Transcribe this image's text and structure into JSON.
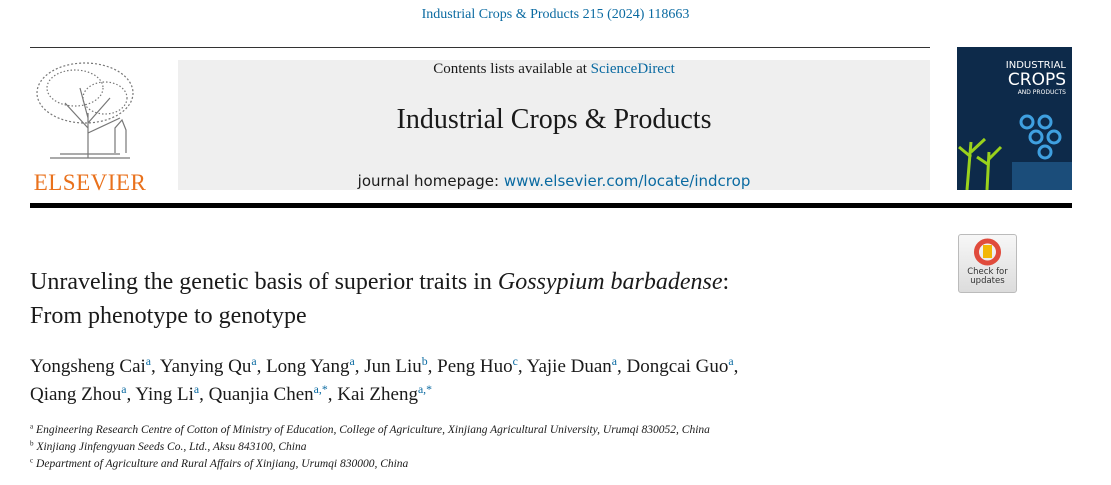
{
  "header": {
    "citation": "Industrial Crops & Products 215 (2024) 118663",
    "contents_prefix": "Contents lists available at ",
    "contents_link": "ScienceDirect",
    "journal": "Industrial Crops & Products",
    "homepage_prefix": "journal homepage: ",
    "homepage_link": "www.elsevier.com/locate/indcrop",
    "publisher": "ELSEVIER",
    "cover": [
      "INDUSTRIAL",
      "CROPS",
      "AND PRODUCTS"
    ],
    "badge": [
      "Check for",
      "updates"
    ]
  },
  "article": {
    "title": {
      "part1": "Unraveling the genetic basis of superior traits in ",
      "species": "Gossypium barbadense",
      "colon": ":",
      "part2": "From phenotype to genotype"
    },
    "separator": ",",
    "authors": [
      [
        {
          "name": "Yongsheng Cai",
          "sup": "a"
        },
        {
          "name": "Yanying Qu",
          "sup": "a"
        },
        {
          "name": "Long Yang",
          "sup": "a"
        },
        {
          "name": "Jun Liu",
          "sup": "b"
        },
        {
          "name": "Peng Huo",
          "sup": "c"
        },
        {
          "name": "Yajie Duan",
          "sup": "a"
        },
        {
          "name": "Dongcai Guo",
          "sup": "a"
        }
      ],
      [
        {
          "name": "Qiang Zhou",
          "sup": "a"
        },
        {
          "name": "Ying Li",
          "sup": "a"
        },
        {
          "name": "Quanjia Chen",
          "sup": "a,*"
        },
        {
          "name": "Kai Zheng",
          "sup": "a,*"
        }
      ]
    ],
    "affiliations": [
      {
        "sup": "a",
        "text": "Engineering Research Centre of Cotton of Ministry of Education, College of Agriculture, Xinjiang Agricultural University, Urumqi 830052, China"
      },
      {
        "sup": "b",
        "text": "Xinjiang Jinfengyuan Seeds Co., Ltd., Aksu 843100, China"
      },
      {
        "sup": "c",
        "text": "Department of Agriculture and Rural Affairs of Xinjiang, Urumqi 830000, China"
      }
    ]
  }
}
